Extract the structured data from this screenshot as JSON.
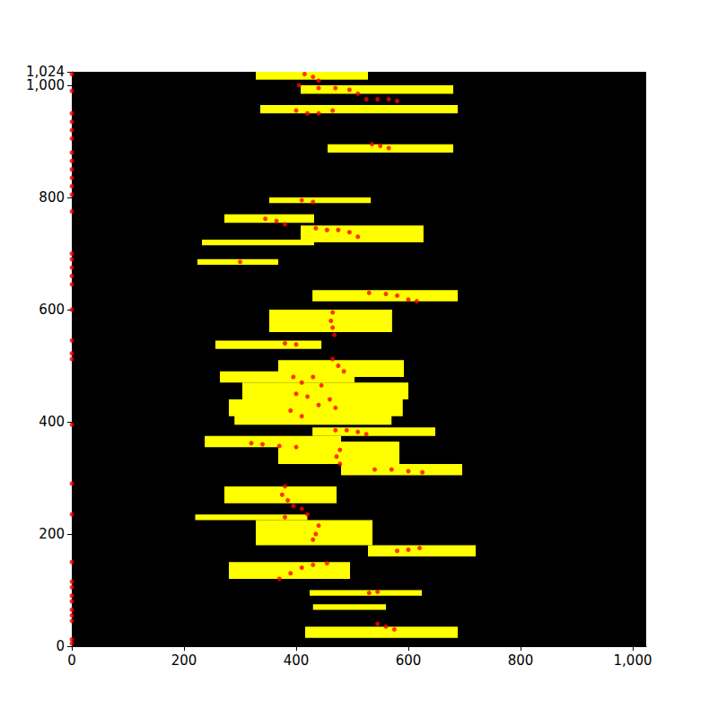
{
  "chart_data": {
    "type": "scatter",
    "xlim": [
      0,
      1024
    ],
    "xticks": [
      0,
      200,
      400,
      600,
      800,
      1000
    ],
    "ylim": [
      0,
      1024
    ],
    "yticks": [
      0,
      200,
      400,
      600,
      800,
      1000
    ],
    "grid": false,
    "series": [
      {
        "type": "rect",
        "color": "#ffff00",
        "values": [
          [
            328,
            1010,
            528,
            1024
          ],
          [
            408,
            985,
            680,
            1000
          ],
          [
            336,
            950,
            688,
            965
          ],
          [
            456,
            880,
            680,
            895
          ],
          [
            352,
            790,
            533,
            800
          ],
          [
            272,
            755,
            432,
            770
          ],
          [
            408,
            720,
            627,
            750
          ],
          [
            232,
            715,
            432,
            725
          ],
          [
            224,
            680,
            368,
            690
          ],
          [
            429,
            615,
            688,
            635
          ],
          [
            352,
            560,
            571,
            600
          ],
          [
            256,
            530,
            445,
            545
          ],
          [
            368,
            480,
            592,
            510
          ],
          [
            264,
            470,
            504,
            490
          ],
          [
            304,
            440,
            600,
            470
          ],
          [
            280,
            410,
            590,
            440
          ],
          [
            290,
            395,
            570,
            415
          ],
          [
            429,
            375,
            648,
            390
          ],
          [
            237,
            355,
            480,
            375
          ],
          [
            368,
            325,
            584,
            365
          ],
          [
            480,
            305,
            696,
            325
          ],
          [
            272,
            255,
            472,
            285
          ],
          [
            220,
            225,
            420,
            235
          ],
          [
            328,
            180,
            536,
            225
          ],
          [
            528,
            160,
            720,
            180
          ],
          [
            280,
            120,
            496,
            150
          ],
          [
            424,
            90,
            624,
            100
          ],
          [
            430,
            65,
            560,
            75
          ],
          [
            416,
            15,
            688,
            35
          ]
        ]
      },
      {
        "type": "scatter",
        "color": "#ff0000",
        "marker": "circle",
        "values": [
          [
            0,
            5
          ],
          [
            0,
            12
          ],
          [
            0,
            45
          ],
          [
            0,
            55
          ],
          [
            0,
            65
          ],
          [
            0,
            80
          ],
          [
            0,
            90
          ],
          [
            0,
            105
          ],
          [
            0,
            115
          ],
          [
            0,
            150
          ],
          [
            0,
            235
          ],
          [
            0,
            290
          ],
          [
            0,
            395
          ],
          [
            0,
            512
          ],
          [
            0,
            522
          ],
          [
            0,
            545
          ],
          [
            0,
            600
          ],
          [
            0,
            645
          ],
          [
            0,
            660
          ],
          [
            0,
            675
          ],
          [
            0,
            690
          ],
          [
            0,
            700
          ],
          [
            0,
            775
          ],
          [
            0,
            805
          ],
          [
            0,
            820
          ],
          [
            0,
            835
          ],
          [
            0,
            850
          ],
          [
            0,
            865
          ],
          [
            0,
            880
          ],
          [
            0,
            905
          ],
          [
            0,
            920
          ],
          [
            0,
            935
          ],
          [
            0,
            950
          ],
          [
            0,
            990
          ],
          [
            0,
            1020
          ],
          [
            415,
            1020
          ],
          [
            430,
            1015
          ],
          [
            440,
            1008
          ],
          [
            405,
            1000
          ],
          [
            440,
            995
          ],
          [
            470,
            995
          ],
          [
            495,
            992
          ],
          [
            510,
            985
          ],
          [
            525,
            975
          ],
          [
            545,
            975
          ],
          [
            565,
            975
          ],
          [
            580,
            972
          ],
          [
            400,
            955
          ],
          [
            420,
            950
          ],
          [
            440,
            950
          ],
          [
            465,
            955
          ],
          [
            535,
            895
          ],
          [
            550,
            892
          ],
          [
            565,
            888
          ],
          [
            410,
            795
          ],
          [
            430,
            792
          ],
          [
            345,
            762
          ],
          [
            365,
            758
          ],
          [
            380,
            752
          ],
          [
            435,
            745
          ],
          [
            455,
            742
          ],
          [
            475,
            742
          ],
          [
            495,
            738
          ],
          [
            510,
            730
          ],
          [
            300,
            685
          ],
          [
            530,
            630
          ],
          [
            560,
            628
          ],
          [
            580,
            625
          ],
          [
            600,
            618
          ],
          [
            615,
            615
          ],
          [
            465,
            595
          ],
          [
            462,
            580
          ],
          [
            465,
            568
          ],
          [
            468,
            555
          ],
          [
            380,
            540
          ],
          [
            400,
            538
          ],
          [
            465,
            512
          ],
          [
            475,
            500
          ],
          [
            485,
            490
          ],
          [
            395,
            480
          ],
          [
            410,
            470
          ],
          [
            430,
            480
          ],
          [
            445,
            465
          ],
          [
            400,
            450
          ],
          [
            420,
            445
          ],
          [
            460,
            440
          ],
          [
            440,
            430
          ],
          [
            470,
            425
          ],
          [
            390,
            420
          ],
          [
            410,
            410
          ],
          [
            470,
            385
          ],
          [
            490,
            385
          ],
          [
            510,
            382
          ],
          [
            525,
            378
          ],
          [
            320,
            362
          ],
          [
            340,
            360
          ],
          [
            370,
            357
          ],
          [
            400,
            355
          ],
          [
            478,
            350
          ],
          [
            472,
            338
          ],
          [
            478,
            325
          ],
          [
            540,
            315
          ],
          [
            570,
            315
          ],
          [
            600,
            312
          ],
          [
            625,
            310
          ],
          [
            380,
            285
          ],
          [
            375,
            270
          ],
          [
            385,
            260
          ],
          [
            395,
            250
          ],
          [
            410,
            245
          ],
          [
            420,
            235
          ],
          [
            380,
            230
          ],
          [
            440,
            215
          ],
          [
            435,
            200
          ],
          [
            430,
            190
          ],
          [
            580,
            170
          ],
          [
            600,
            172
          ],
          [
            620,
            175
          ],
          [
            370,
            120
          ],
          [
            390,
            130
          ],
          [
            410,
            140
          ],
          [
            430,
            145
          ],
          [
            455,
            148
          ],
          [
            530,
            95
          ],
          [
            545,
            97
          ],
          [
            545,
            40
          ],
          [
            560,
            35
          ],
          [
            575,
            30
          ]
        ]
      }
    ]
  }
}
